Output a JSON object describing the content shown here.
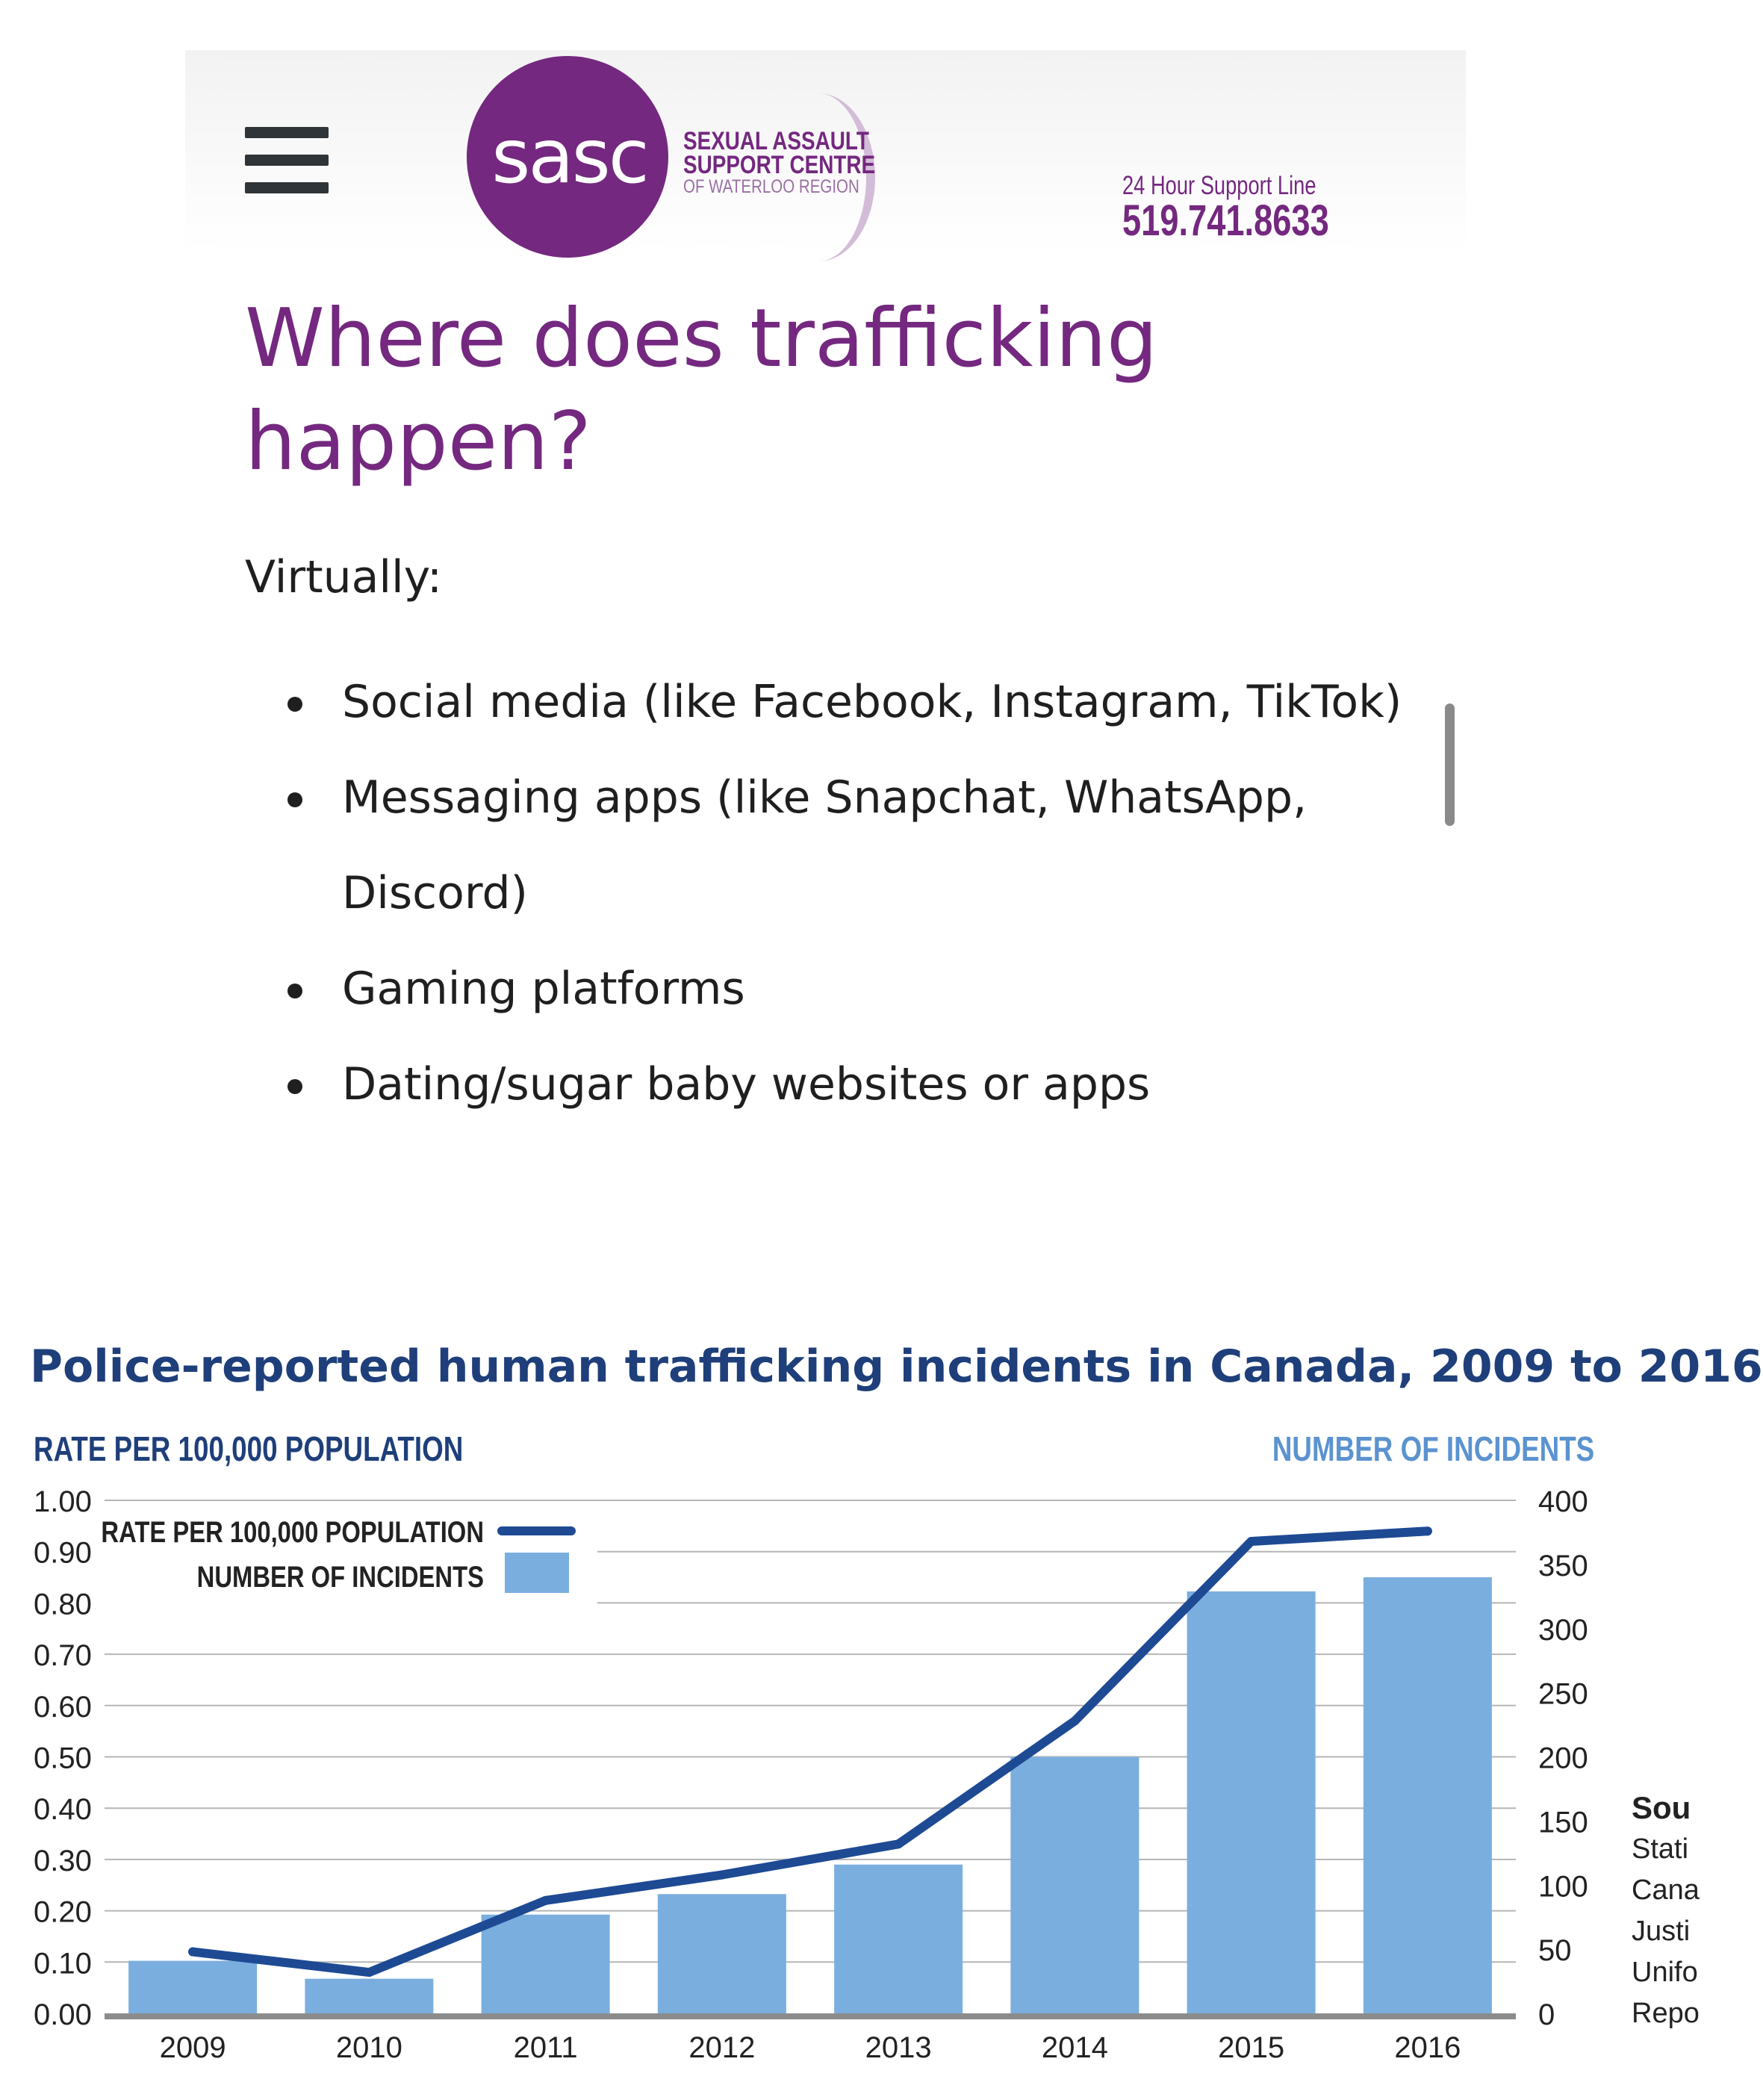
{
  "header": {
    "logo_text": "sasc",
    "org_line1": "SEXUAL ASSAULT",
    "org_line2": "SUPPORT CENTRE",
    "org_line3": "OF WATERLOO REGION",
    "support_label": "24 Hour Support Line",
    "support_phone": "519.741.8633",
    "brand_color": "#74287f",
    "menu_icon": "hamburger-menu-icon"
  },
  "article": {
    "heading": "Where does trafficking happen?",
    "intro": "Virtually:",
    "bullets": [
      "Social media (like Facebook, Instagram, TikTok)",
      "Messaging apps (like Snapchat, WhatsApp, Discord)",
      "Gaming platforms",
      "Dating/sugar baby websites or apps"
    ]
  },
  "chart_data": {
    "type": "bar",
    "title": "Police-reported human trafficking incidents in Canada, 2009 to 2016",
    "ylabel_left": "RATE PER 100,000 POPULATION",
    "ylabel_right": "NUMBER OF INCIDENTS",
    "categories": [
      "2009",
      "2010",
      "2011",
      "2012",
      "2013",
      "2014",
      "2015",
      "2016"
    ],
    "series": [
      {
        "name": "NUMBER OF INCIDENTS",
        "kind": "bar",
        "axis": "right",
        "color": "#7aaedf",
        "values": [
          41,
          27,
          77,
          93,
          116,
          200,
          329,
          340
        ]
      },
      {
        "name": "RATE PER 100,000 POPULATION",
        "kind": "line",
        "axis": "left",
        "color": "#1e4a94",
        "values": [
          0.12,
          0.08,
          0.22,
          0.27,
          0.33,
          0.57,
          0.92,
          0.94
        ]
      }
    ],
    "ylim_left": [
      0,
      1
    ],
    "yticks_left": [
      "0.00",
      "0.10",
      "0.20",
      "0.30",
      "0.40",
      "0.50",
      "0.60",
      "0.70",
      "0.80",
      "0.90",
      "1.00"
    ],
    "ylim_right": [
      0,
      400
    ],
    "yticks_right": [
      "0",
      "50",
      "100",
      "150",
      "200",
      "250",
      "300",
      "350",
      "400"
    ],
    "grid": true,
    "legend_position": "top-left",
    "source_label": "Sou",
    "source_lines": [
      "Stati",
      "Cana",
      "Justi",
      "Unifo",
      "Repo"
    ]
  }
}
